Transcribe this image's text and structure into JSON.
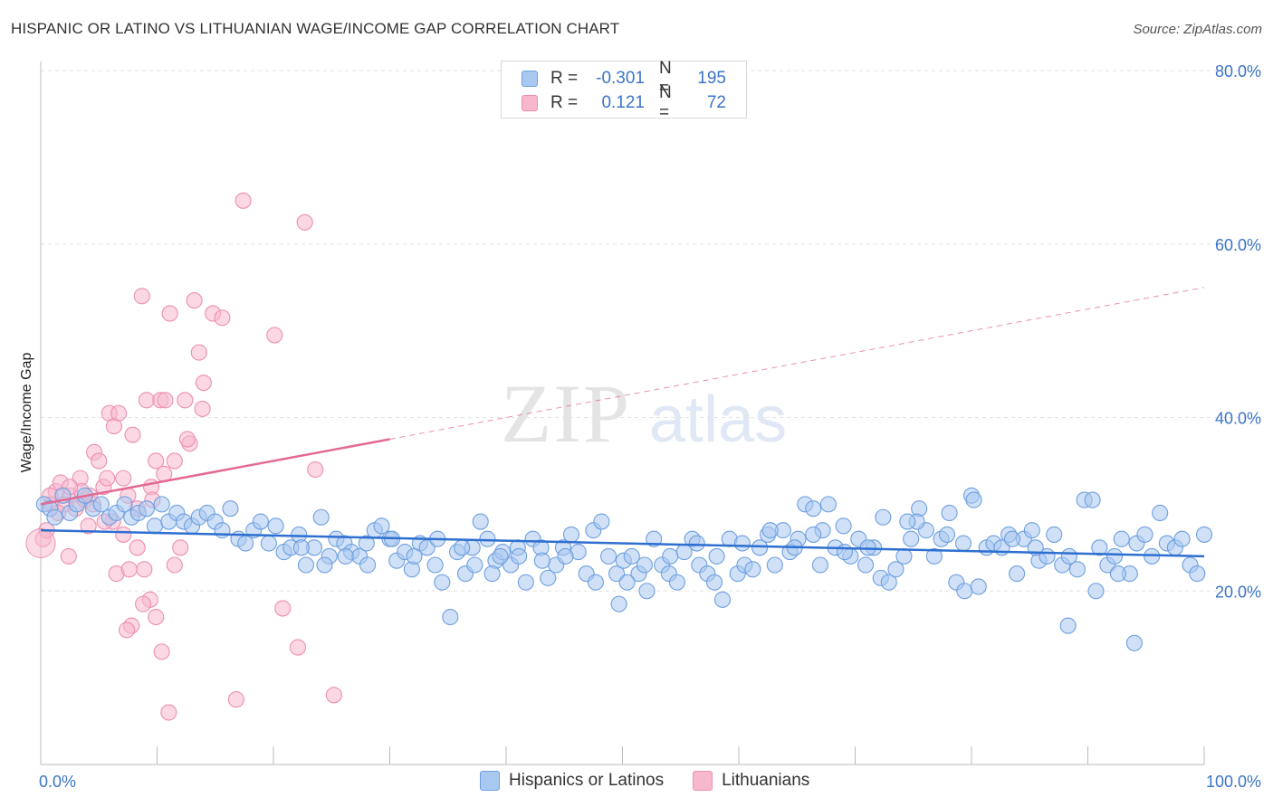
{
  "title": "HISPANIC OR LATINO VS LITHUANIAN WAGE/INCOME GAP CORRELATION CHART",
  "source": "Source: ZipAtlas.com",
  "watermark": {
    "zip": "ZIP",
    "atlas": "atlas"
  },
  "legend": {
    "rows": [
      {
        "r_label": "R =",
        "r_value": "-0.301",
        "n_label": "N =",
        "n_value": "195",
        "color": "#a9c8f0"
      },
      {
        "r_label": "R =",
        "r_value": "0.121",
        "n_label": "N =",
        "n_value": "72",
        "color": "#f7b8cd"
      }
    ]
  },
  "bottom_legend": {
    "blue": "Hispanics or Latinos",
    "pink": "Lithuanians"
  },
  "colors": {
    "blue_fill": "#a9c8f0",
    "blue_stroke": "#6d9fe0",
    "blue_line": "#2e6fd0",
    "pink_fill": "#f7b8cd",
    "pink_stroke": "#ec8fb0",
    "pink_line": "#e46a96",
    "tick_label": "#3b74c7",
    "grid": "#e3e3e3"
  },
  "chart_data": {
    "type": "scatter",
    "title": "HISPANIC OR LATINO VS LITHUANIAN WAGE/INCOME GAP CORRELATION CHART",
    "xlabel": "",
    "ylabel": "Wage/Income Gap",
    "xlim": [
      0,
      100
    ],
    "ylim": [
      0,
      80
    ],
    "x_ticks": [
      "0.0%",
      "100.0%"
    ],
    "y_ticks": [
      "20.0%",
      "40.0%",
      "60.0%",
      "80.0%"
    ],
    "grid": true,
    "series": [
      {
        "name": "Hispanics or Latinos",
        "trend": {
          "x0": 0,
          "y0": 27.0,
          "x1": 100,
          "y1": 24.0
        },
        "points": [
          [
            0.3,
            30
          ],
          [
            0.8,
            29.5
          ],
          [
            1.2,
            28.5
          ],
          [
            1.9,
            31
          ],
          [
            2.5,
            29
          ],
          [
            3.1,
            30
          ],
          [
            3.8,
            31
          ],
          [
            4.5,
            29.5
          ],
          [
            5.2,
            30
          ],
          [
            5.9,
            28.5
          ],
          [
            6.5,
            29
          ],
          [
            7.2,
            30
          ],
          [
            7.8,
            28.5
          ],
          [
            8.4,
            29
          ],
          [
            9.1,
            29.5
          ],
          [
            9.8,
            27.5
          ],
          [
            10.4,
            30
          ],
          [
            11.0,
            28
          ],
          [
            11.7,
            29
          ],
          [
            12.3,
            28
          ],
          [
            13.0,
            27.5
          ],
          [
            13.6,
            28.5
          ],
          [
            14.3,
            29
          ],
          [
            15,
            28
          ],
          [
            15.6,
            27
          ],
          [
            16.3,
            29.5
          ],
          [
            17,
            26
          ],
          [
            17.6,
            25.5
          ],
          [
            18.3,
            27
          ],
          [
            18.9,
            28
          ],
          [
            19.6,
            25.5
          ],
          [
            20.2,
            27.5
          ],
          [
            20.9,
            24.5
          ],
          [
            21.5,
            25
          ],
          [
            22.2,
            26.5
          ],
          [
            22.8,
            23
          ],
          [
            23.5,
            25
          ],
          [
            24.1,
            28.5
          ],
          [
            24.8,
            24
          ],
          [
            25.4,
            26
          ],
          [
            26.1,
            25.5
          ],
          [
            26.7,
            24.5
          ],
          [
            27.4,
            24
          ],
          [
            28,
            25.5
          ],
          [
            28.7,
            27
          ],
          [
            29.3,
            27.5
          ],
          [
            30,
            26
          ],
          [
            30.6,
            23.5
          ],
          [
            31.3,
            24.5
          ],
          [
            31.9,
            22.5
          ],
          [
            32.6,
            25.5
          ],
          [
            33.2,
            25
          ],
          [
            33.9,
            23
          ],
          [
            34.5,
            21
          ],
          [
            35.2,
            17
          ],
          [
            35.8,
            24.5
          ],
          [
            36.5,
            22
          ],
          [
            37.1,
            25
          ],
          [
            37.8,
            28
          ],
          [
            38.4,
            26
          ],
          [
            39.1,
            23.5
          ],
          [
            39.7,
            24.5
          ],
          [
            40.4,
            23
          ],
          [
            41,
            25
          ],
          [
            41.7,
            21
          ],
          [
            42.3,
            26
          ],
          [
            43,
            25
          ],
          [
            43.6,
            21.5
          ],
          [
            44.3,
            23
          ],
          [
            44.9,
            25
          ],
          [
            45.6,
            26.5
          ],
          [
            46.2,
            24.5
          ],
          [
            46.9,
            22
          ],
          [
            47.5,
            27
          ],
          [
            48.2,
            28
          ],
          [
            48.8,
            24
          ],
          [
            49.5,
            22
          ],
          [
            50.1,
            23.5
          ],
          [
            50.8,
            24
          ],
          [
            51.4,
            22
          ],
          [
            52.1,
            20
          ],
          [
            52.7,
            26
          ],
          [
            53.4,
            23
          ],
          [
            54,
            22
          ],
          [
            54.7,
            21
          ],
          [
            55.3,
            24.5
          ],
          [
            56,
            26
          ],
          [
            56.6,
            23
          ],
          [
            57.3,
            22
          ],
          [
            57.9,
            21
          ],
          [
            58.6,
            19
          ],
          [
            59.2,
            26
          ],
          [
            59.9,
            22
          ],
          [
            60.5,
            23
          ],
          [
            61.2,
            22.5
          ],
          [
            61.8,
            25
          ],
          [
            62.5,
            26.5
          ],
          [
            63.1,
            23
          ],
          [
            63.8,
            27
          ],
          [
            64.4,
            24.5
          ],
          [
            65.1,
            26
          ],
          [
            65.7,
            30
          ],
          [
            66.4,
            29.5
          ],
          [
            67,
            23
          ],
          [
            67.7,
            30
          ],
          [
            68.3,
            25
          ],
          [
            69,
            27.5
          ],
          [
            69.6,
            24
          ],
          [
            70.3,
            26
          ],
          [
            70.9,
            23
          ],
          [
            71.6,
            25
          ],
          [
            72.2,
            21.5
          ],
          [
            72.9,
            21
          ],
          [
            73.5,
            22.5
          ],
          [
            74.2,
            24
          ],
          [
            74.8,
            26
          ],
          [
            75.5,
            29.5
          ],
          [
            76.1,
            27
          ],
          [
            76.8,
            24
          ],
          [
            77.4,
            26
          ],
          [
            78.1,
            29
          ],
          [
            78.7,
            21
          ],
          [
            79.4,
            20
          ],
          [
            80,
            31
          ],
          [
            80.6,
            20.5
          ],
          [
            81.3,
            25
          ],
          [
            81.9,
            25.5
          ],
          [
            82.6,
            25
          ],
          [
            83.2,
            26.5
          ],
          [
            83.9,
            22
          ],
          [
            84.5,
            26
          ],
          [
            85.2,
            27
          ],
          [
            85.8,
            23.5
          ],
          [
            86.5,
            24
          ],
          [
            87.1,
            26.5
          ],
          [
            87.8,
            23
          ],
          [
            88.4,
            24
          ],
          [
            89.1,
            22.5
          ],
          [
            89.7,
            30.5
          ],
          [
            90.4,
            30.5
          ],
          [
            91,
            25
          ],
          [
            91.7,
            23
          ],
          [
            92.3,
            24
          ],
          [
            92.9,
            26
          ],
          [
            93.6,
            22
          ],
          [
            94.2,
            25.5
          ],
          [
            94.9,
            26.5
          ],
          [
            95.5,
            24
          ],
          [
            96.2,
            29
          ],
          [
            96.8,
            25.5
          ],
          [
            97.5,
            25
          ],
          [
            98.1,
            26
          ],
          [
            98.8,
            23
          ],
          [
            99.4,
            22
          ],
          [
            100,
            26.5
          ],
          [
            38.8,
            22
          ],
          [
            49.7,
            18.5
          ],
          [
            90.7,
            20
          ],
          [
            94,
            14
          ],
          [
            88.3,
            16
          ],
          [
            92.6,
            22
          ],
          [
            85.5,
            25
          ],
          [
            83.5,
            26
          ],
          [
            80.2,
            30.5
          ],
          [
            79.3,
            25.5
          ],
          [
            77.9,
            26.5
          ],
          [
            75.3,
            28
          ],
          [
            74.5,
            28
          ],
          [
            72.4,
            28.5
          ],
          [
            71.1,
            25
          ],
          [
            69.1,
            24.5
          ],
          [
            67.2,
            27
          ],
          [
            66.4,
            26.5
          ],
          [
            64.8,
            25
          ],
          [
            62.7,
            27
          ],
          [
            60.3,
            25.5
          ],
          [
            58.1,
            24
          ],
          [
            56.4,
            25.5
          ],
          [
            54.1,
            24
          ],
          [
            51.9,
            23
          ],
          [
            50.4,
            21
          ],
          [
            47.7,
            21
          ],
          [
            45.1,
            24
          ],
          [
            43.1,
            23.5
          ],
          [
            41.1,
            24
          ],
          [
            39.5,
            24
          ],
          [
            37.3,
            23
          ],
          [
            36.2,
            25
          ],
          [
            34.1,
            26
          ],
          [
            32.1,
            24
          ],
          [
            30.2,
            26
          ],
          [
            28.1,
            23
          ],
          [
            26.2,
            24
          ],
          [
            24.4,
            23
          ],
          [
            22.4,
            25
          ]
        ]
      },
      {
        "name": "Lithuanians",
        "trend": {
          "x0": 0,
          "y0": 30.0,
          "x1": 30,
          "y1": 37.5,
          "dash_to_x": 100,
          "dash_to_y": 55.0
        },
        "points": [
          [
            0.2,
            26
          ],
          [
            0.5,
            27
          ],
          [
            0.9,
            30
          ],
          [
            1.3,
            31.5
          ],
          [
            1.7,
            32.5
          ],
          [
            2.1,
            30
          ],
          [
            2.6,
            31
          ],
          [
            3,
            29.5
          ],
          [
            3.4,
            33
          ],
          [
            3.8,
            30.5
          ],
          [
            4.2,
            31
          ],
          [
            4.6,
            36
          ],
          [
            5,
            35
          ],
          [
            5.4,
            32
          ],
          [
            5.9,
            40.5
          ],
          [
            6.3,
            39
          ],
          [
            6.7,
            40.5
          ],
          [
            7.1,
            33
          ],
          [
            7.5,
            31
          ],
          [
            7.9,
            38
          ],
          [
            8.3,
            29.5
          ],
          [
            8.7,
            54
          ],
          [
            9.1,
            42
          ],
          [
            9.5,
            32
          ],
          [
            9.9,
            35
          ],
          [
            10.3,
            42
          ],
          [
            10.7,
            42
          ],
          [
            11.1,
            52
          ],
          [
            11.5,
            35
          ],
          [
            12,
            25
          ],
          [
            12.4,
            42
          ],
          [
            12.8,
            37
          ],
          [
            13.2,
            53.5
          ],
          [
            13.6,
            47.5
          ],
          [
            14,
            44
          ],
          [
            14.8,
            52
          ],
          [
            15.6,
            51.5
          ],
          [
            17.4,
            65
          ],
          [
            20.1,
            49.5
          ],
          [
            22.7,
            62.5
          ],
          [
            23.6,
            34
          ],
          [
            2.4,
            24
          ],
          [
            4.1,
            27.5
          ],
          [
            5.7,
            33
          ],
          [
            6.2,
            28
          ],
          [
            7.1,
            26.5
          ],
          [
            7.8,
            16
          ],
          [
            8.3,
            25
          ],
          [
            8.9,
            22.5
          ],
          [
            9.4,
            19
          ],
          [
            9.9,
            17
          ],
          [
            10.4,
            13
          ],
          [
            11,
            6
          ],
          [
            11.5,
            23
          ],
          [
            7.4,
            15.5
          ],
          [
            6.5,
            22
          ],
          [
            5.5,
            28
          ],
          [
            4.5,
            30
          ],
          [
            3.5,
            31.5
          ],
          [
            2.5,
            32
          ],
          [
            1.5,
            29
          ],
          [
            0.8,
            31
          ],
          [
            16.8,
            7.5
          ],
          [
            20.8,
            18
          ],
          [
            22.1,
            13.5
          ],
          [
            25.2,
            8
          ],
          [
            8.8,
            18.5
          ],
          [
            7.6,
            22.5
          ],
          [
            9.6,
            30.5
          ],
          [
            10.6,
            33.5
          ],
          [
            12.6,
            37.5
          ],
          [
            13.9,
            41
          ]
        ]
      }
    ]
  }
}
